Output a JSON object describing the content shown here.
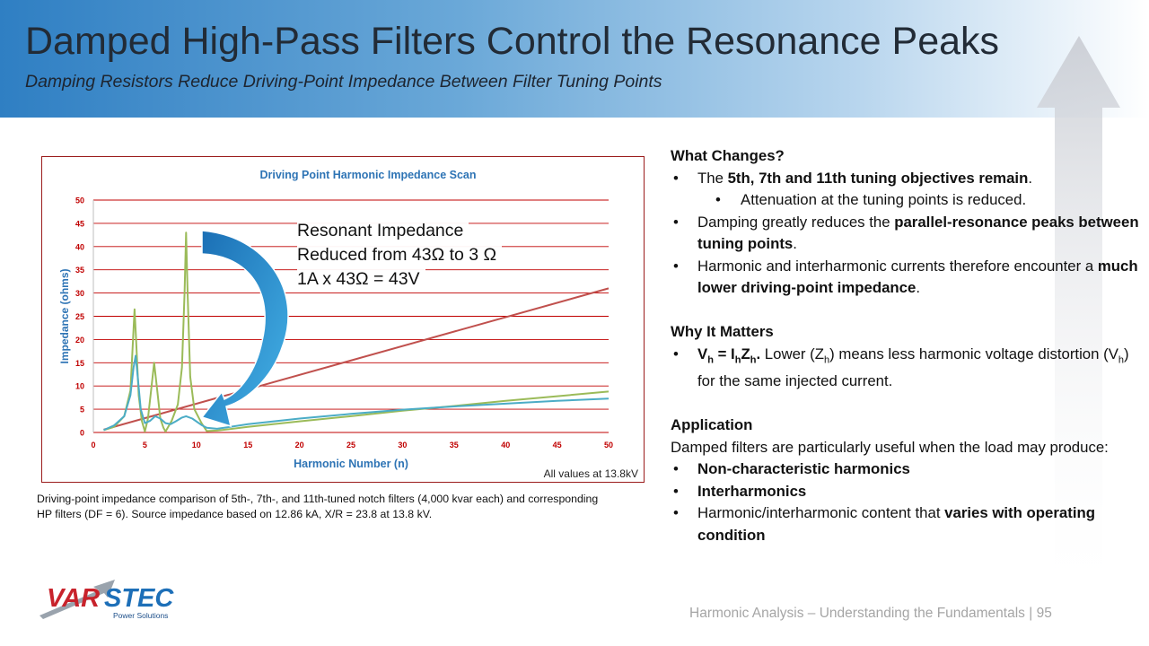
{
  "header": {
    "title": "Damped High-Pass Filters Control the Resonance Peaks",
    "subtitle": "Damping Resistors Reduce Driving-Point Impedance Between Filter Tuning Points"
  },
  "chart_data": {
    "type": "line",
    "title": "Driving Point Harmonic Impedance Scan",
    "xlabel": "Harmonic Number (n)",
    "ylabel": "Impedance (ohms)",
    "xlim": [
      0,
      50
    ],
    "ylim": [
      0,
      50
    ],
    "x_ticks": [
      0,
      5,
      10,
      15,
      20,
      25,
      30,
      35,
      40,
      45,
      50
    ],
    "y_ticks": [
      0,
      5,
      10,
      15,
      20,
      25,
      30,
      35,
      40,
      45,
      50
    ],
    "grid": "horizontal",
    "legend": "none",
    "series": [
      {
        "color": "#c0504d",
        "points": [
          [
            1,
            0.6
          ],
          [
            50,
            31
          ]
        ]
      },
      {
        "color": "#9bbb59",
        "points": [
          [
            1,
            0.5
          ],
          [
            2,
            1.2
          ],
          [
            3,
            3.5
          ],
          [
            3.6,
            9
          ],
          [
            3.85,
            20
          ],
          [
            4,
            26.5
          ],
          [
            4.15,
            20
          ],
          [
            4.4,
            8
          ],
          [
            4.7,
            2.5
          ],
          [
            5,
            0.2
          ],
          [
            5.3,
            3
          ],
          [
            5.6,
            9
          ],
          [
            5.9,
            15
          ],
          [
            6.2,
            9
          ],
          [
            6.5,
            3
          ],
          [
            6.8,
            1
          ],
          [
            7,
            0.2
          ],
          [
            7.6,
            2.5
          ],
          [
            8.2,
            6
          ],
          [
            8.6,
            14
          ],
          [
            8.85,
            30
          ],
          [
            9,
            43
          ],
          [
            9.15,
            30
          ],
          [
            9.4,
            12
          ],
          [
            9.8,
            5
          ],
          [
            10.5,
            2
          ],
          [
            11,
            0.3
          ],
          [
            12,
            0.4
          ],
          [
            15,
            1.2
          ],
          [
            20,
            2.4
          ],
          [
            25,
            3.5
          ],
          [
            30,
            4.7
          ],
          [
            35,
            5.7
          ],
          [
            40,
            6.8
          ],
          [
            45,
            7.8
          ],
          [
            50,
            8.8
          ]
        ]
      },
      {
        "color": "#4bacc6",
        "points": [
          [
            1,
            0.5
          ],
          [
            2,
            1.5
          ],
          [
            3,
            3.5
          ],
          [
            3.6,
            8
          ],
          [
            3.9,
            14
          ],
          [
            4.1,
            16.5
          ],
          [
            4.3,
            12
          ],
          [
            4.6,
            5
          ],
          [
            5,
            2
          ],
          [
            5.5,
            2.5
          ],
          [
            6,
            3.5
          ],
          [
            6.5,
            3
          ],
          [
            7,
            2
          ],
          [
            7.5,
            1.8
          ],
          [
            8,
            2.4
          ],
          [
            8.6,
            3.2
          ],
          [
            9,
            3.5
          ],
          [
            9.6,
            3
          ],
          [
            10.5,
            1.6
          ],
          [
            11,
            1
          ],
          [
            12,
            0.8
          ],
          [
            13,
            1.1
          ],
          [
            15,
            1.8
          ],
          [
            20,
            3
          ],
          [
            25,
            4
          ],
          [
            30,
            4.9
          ],
          [
            35,
            5.6
          ],
          [
            40,
            6.2
          ],
          [
            45,
            6.8
          ],
          [
            50,
            7.3
          ]
        ]
      }
    ],
    "annotations": [
      "Resonant Impedance",
      "Reduced from 43Ω to 3 Ω",
      "1A x 43Ω = 43V"
    ],
    "note": "All values at 13.8kV"
  },
  "caption": "Driving-point impedance comparison of 5th-, 7th-, and 11th-tuned notch filters (4,000 kvar each) and corresponding HP filters (DF = 6). Source impedance based on 12.86 kA, X/R = 23.8 at 13.8 kV.",
  "right_panel": {
    "what_changes_heading": "What Changes?",
    "b1_pre": "The ",
    "b1_bold": "5th, 7th and 11th tuning objectives remain",
    "b1_post": ".",
    "b1_sub": "Attenuation at the tuning points is reduced.",
    "b2_pre": "Damping greatly reduces the ",
    "b2_bold": "parallel-resonance peaks between tuning points",
    "b2_post": ".",
    "b3_pre": "Harmonic and interharmonic currents therefore encounter a ",
    "b3_bold": "much lower driving-point impedance",
    "b3_post": ".",
    "why_heading": "Why It Matters",
    "formula_v": "V",
    "formula_h1": "h",
    "formula_eq": " = I",
    "formula_h2": "h",
    "formula_z": "Z",
    "formula_h3": "h",
    "formula_dot": ".",
    "why_text1": " Lower (Z",
    "why_h4": "h",
    "why_text2": ") means less harmonic voltage distortion (V",
    "why_h5": "h",
    "why_text3": ") for the same injected current.",
    "application_heading": "Application",
    "application_text": "Damped filters are particularly useful when the load may produce:",
    "app_items": [
      "Non-characteristic harmonics",
      "Interharmonics"
    ],
    "app3_pre": "Harmonic/interharmonic content that ",
    "app3_bold": "varies with operating condition"
  },
  "logo": {
    "brand": "VARSTEC",
    "tagline": "Power Solutions"
  },
  "footer": {
    "text": "Harmonic Analysis – Understanding the Fundamentals",
    "page": "| 95"
  },
  "colors": {
    "accent": "#2f7fc3",
    "grid": "#c00000",
    "axis_text": "#2e74b5"
  }
}
